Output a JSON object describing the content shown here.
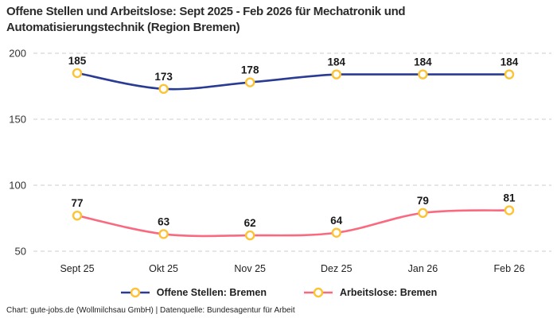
{
  "header": {
    "title": "Offene Stellen und Arbeitslose: Sept 2025 - Feb 2026 für Mechatronik und Automatisierungstechnik (Region Bremen)"
  },
  "chart_data": {
    "type": "line",
    "title": "Offene Stellen und Arbeitslose: Sept 2025 - Feb 2026 für Mechatronik und Automatisierungstechnik (Region Bremen)",
    "categories": [
      "Sept 25",
      "Okt 25",
      "Nov 25",
      "Dez 25",
      "Jan 26",
      "Feb 26"
    ],
    "series": [
      {
        "name": "Offene Stellen: Bremen",
        "values": [
          185,
          173,
          178,
          184,
          184,
          184
        ],
        "color": "#2a3b94"
      },
      {
        "name": "Arbeitslose: Bremen",
        "values": [
          77,
          63,
          62,
          64,
          79,
          81
        ],
        "color": "#f9697f"
      }
    ],
    "yticks": [
      50,
      100,
      150,
      200
    ],
    "ylim": [
      50,
      200
    ],
    "grid": true,
    "grid_style": "dashed",
    "legend_position": "bottom",
    "show_value_labels": true,
    "marker": {
      "shape": "circle",
      "fill": "#ffffff",
      "stroke": "#fcc335"
    }
  },
  "colors": {
    "grid": "#cccccc",
    "value_label_text": "#1a1a1a",
    "axis_text": "#333333",
    "background": "#ffffff"
  },
  "footer": {
    "text": "Chart: gute-jobs.de (Wollmilchsau GmbH) | Datenquelle: Bundesagentur für Arbeit"
  }
}
